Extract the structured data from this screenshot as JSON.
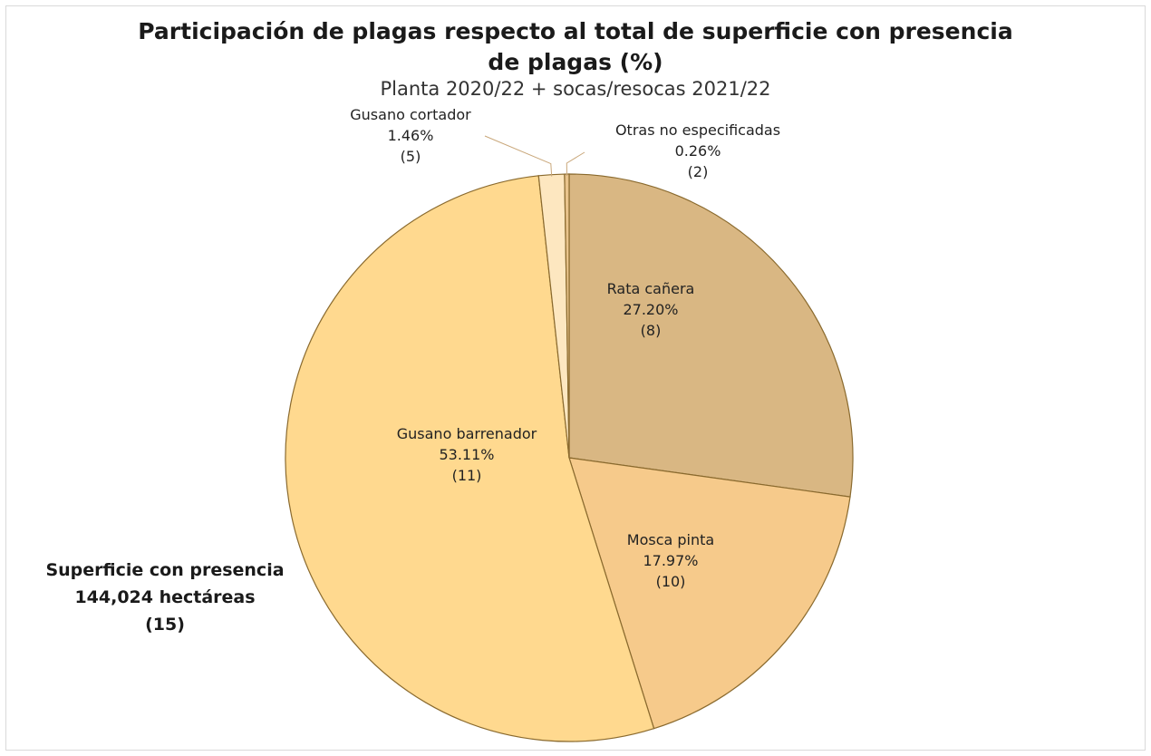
{
  "chart_data": {
    "type": "pie",
    "title": "Participación de plagas respecto al total de superficie con presencia de plagas (%)",
    "title_lines": [
      "Participación de plagas respecto al total de superficie con presencia",
      "de plagas (%)"
    ],
    "subtitle": "Planta 2020/22 + socas/resocas 2021/22",
    "unit": "%",
    "slices": [
      {
        "label": "Rata cañera",
        "value": 27.2,
        "value_text": "27.20%",
        "count_text": "(8)",
        "color": "#d9b783"
      },
      {
        "label": "Mosca pinta",
        "value": 17.97,
        "value_text": "17.97%",
        "count_text": "(10)",
        "color": "#f6ca8b"
      },
      {
        "label": "Gusano barrenador",
        "value": 53.11,
        "value_text": "53.11%",
        "count_text": "(11)",
        "color": "#ffd98f"
      },
      {
        "label": "Gusano cortador",
        "value": 1.46,
        "value_text": "1.46%",
        "count_text": "(5)",
        "color": "#fde7c0"
      },
      {
        "label": "Otras no especificadas",
        "value": 0.26,
        "value_text": "0.26%",
        "count_text": "(2)",
        "color": "#e9c48c"
      }
    ],
    "total": {
      "line1": "Superficie con presencia",
      "line2": "144,024 hectáreas",
      "line3": "(15)"
    },
    "stroke_color": "#8a6a2e"
  }
}
